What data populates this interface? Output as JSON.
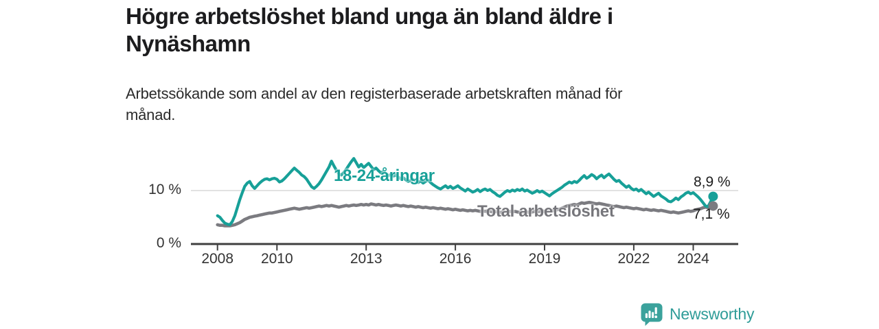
{
  "chart_data": {
    "type": "line",
    "title": "Högre arbetslöshet bland unga än bland äldre i Nynäshamn",
    "subtitle": "Arbetssökande som andel av den registerbaserade arbetskraften månad för månad.",
    "unit": "%",
    "x_start_year": 2008,
    "x_frequency": "monthly",
    "x_end": "2024-09",
    "x_tick_years": [
      2008,
      2010,
      2013,
      2016,
      2019,
      2022,
      2024
    ],
    "x_tick_labels": [
      "2008",
      "2010",
      "2013",
      "2016",
      "2019",
      "2022",
      "2024"
    ],
    "y_ticks": [
      {
        "value": 0,
        "label": "0 %"
      },
      {
        "value": 10,
        "label": "10 %"
      }
    ],
    "ylim": [
      0,
      17.5
    ],
    "grid": "single horizontal gridline at 10 %",
    "legend_position": "inline labels on lines",
    "series": [
      {
        "name": "18-24-åringar",
        "color": "#17a098",
        "end_value": 8.9,
        "end_label": "8,9 %",
        "values": [
          5.3,
          5.0,
          4.4,
          3.9,
          3.7,
          3.6,
          4.2,
          5.3,
          6.8,
          8.3,
          9.6,
          10.8,
          11.4,
          11.7,
          10.9,
          10.4,
          10.9,
          11.4,
          11.8,
          12.1,
          12.2,
          12.0,
          12.2,
          12.3,
          12.1,
          11.6,
          11.8,
          12.2,
          12.7,
          13.2,
          13.7,
          14.2,
          13.8,
          13.4,
          12.9,
          12.6,
          12.1,
          11.4,
          10.7,
          10.4,
          10.8,
          11.3,
          12.0,
          12.8,
          13.6,
          14.4,
          15.5,
          14.6,
          13.8,
          13.1,
          12.9,
          13.4,
          14.0,
          14.7,
          15.4,
          16.0,
          15.2,
          14.4,
          14.9,
          14.3,
          14.7,
          15.1,
          14.5,
          13.9,
          14.2,
          13.7,
          13.3,
          13.6,
          13.1,
          12.8,
          13.0,
          12.7,
          12.9,
          12.5,
          12.2,
          12.4,
          12.0,
          11.7,
          11.9,
          12.1,
          11.7,
          11.5,
          11.8,
          11.4,
          11.7,
          12.0,
          11.5,
          11.1,
          10.8,
          10.5,
          10.3,
          10.6,
          10.9,
          10.5,
          10.8,
          10.4,
          10.6,
          10.9,
          10.5,
          10.2,
          9.9,
          10.3,
          10.0,
          9.7,
          9.9,
          10.2,
          9.8,
          10.1,
          10.3,
          10.0,
          10.2,
          9.8,
          9.5,
          9.1,
          8.9,
          9.3,
          9.7,
          10.0,
          9.8,
          10.1,
          9.9,
          10.2,
          10.0,
          10.3,
          9.9,
          10.1,
          9.8,
          9.5,
          9.7,
          10.0,
          9.7,
          9.9,
          9.6,
          9.3,
          9.0,
          9.4,
          9.7,
          10.0,
          10.3,
          10.6,
          11.0,
          11.3,
          11.6,
          11.4,
          11.7,
          11.5,
          11.9,
          12.4,
          12.8,
          12.3,
          12.6,
          13.0,
          12.7,
          12.2,
          12.6,
          12.9,
          12.4,
          12.8,
          13.1,
          12.6,
          12.1,
          11.7,
          11.9,
          11.4,
          11.0,
          10.6,
          10.9,
          10.4,
          10.1,
          10.3,
          9.9,
          10.2,
          9.8,
          9.4,
          9.7,
          9.3,
          8.9,
          9.2,
          9.5,
          9.0,
          8.7,
          8.4,
          8.0,
          7.9,
          8.2,
          8.6,
          8.3,
          8.8,
          9.1,
          9.5,
          9.7,
          9.4,
          9.6,
          9.2,
          8.8,
          8.3,
          7.7,
          7.1,
          7.0,
          7.9,
          8.9
        ]
      },
      {
        "name": "Total arbetslöshet",
        "color": "#7b7b80",
        "end_value": 7.1,
        "end_label": "7,1 %",
        "values": [
          3.6,
          3.5,
          3.5,
          3.4,
          3.4,
          3.4,
          3.5,
          3.6,
          3.8,
          4.0,
          4.3,
          4.6,
          4.8,
          5.0,
          5.1,
          5.2,
          5.3,
          5.4,
          5.5,
          5.6,
          5.7,
          5.8,
          5.8,
          5.9,
          6.0,
          6.1,
          6.2,
          6.3,
          6.4,
          6.5,
          6.6,
          6.7,
          6.6,
          6.5,
          6.6,
          6.7,
          6.8,
          6.7,
          6.8,
          6.9,
          7.0,
          7.1,
          7.0,
          7.1,
          7.2,
          7.1,
          7.2,
          7.1,
          7.0,
          6.9,
          7.0,
          7.1,
          7.2,
          7.1,
          7.2,
          7.3,
          7.2,
          7.3,
          7.4,
          7.3,
          7.4,
          7.3,
          7.5,
          7.4,
          7.3,
          7.4,
          7.3,
          7.2,
          7.3,
          7.2,
          7.1,
          7.2,
          7.3,
          7.2,
          7.1,
          7.2,
          7.1,
          7.0,
          7.1,
          7.0,
          6.9,
          7.0,
          6.9,
          6.8,
          6.9,
          6.8,
          6.7,
          6.8,
          6.7,
          6.6,
          6.7,
          6.6,
          6.5,
          6.6,
          6.5,
          6.4,
          6.5,
          6.4,
          6.3,
          6.4,
          6.3,
          6.2,
          6.3,
          6.2,
          6.3,
          6.2,
          6.1,
          6.2,
          6.1,
          6.2,
          6.1,
          6.0,
          6.1,
          6.0,
          5.9,
          6.0,
          6.1,
          6.0,
          6.1,
          6.0,
          6.1,
          6.0,
          5.9,
          6.0,
          5.9,
          6.0,
          5.9,
          6.0,
          6.1,
          6.0,
          6.1,
          6.2,
          6.1,
          6.2,
          6.3,
          6.2,
          6.3,
          6.4,
          6.5,
          6.7,
          6.9,
          7.1,
          7.2,
          7.3,
          7.4,
          7.3,
          7.5,
          7.7,
          7.6,
          7.7,
          7.8,
          7.7,
          7.6,
          7.5,
          7.6,
          7.5,
          7.4,
          7.3,
          7.2,
          7.1,
          7.0,
          7.1,
          7.0,
          6.9,
          6.8,
          6.9,
          6.8,
          6.7,
          6.6,
          6.7,
          6.6,
          6.5,
          6.4,
          6.5,
          6.4,
          6.3,
          6.4,
          6.3,
          6.2,
          6.3,
          6.2,
          6.1,
          6.0,
          5.9,
          6.0,
          5.9,
          5.8,
          5.9,
          6.0,
          6.1,
          6.2,
          6.1,
          6.2,
          6.4,
          6.5,
          6.6,
          6.8,
          6.9,
          6.8,
          7.0,
          7.1
        ]
      }
    ]
  },
  "branding": {
    "logo_text": "Newsworthy",
    "logo_icon": "bar-chart-speech-bubble-icon",
    "color": "#2f9c98"
  },
  "colors": {
    "accent": "#17a098",
    "total_gray": "#7b7b80",
    "grid": "#d9d9d9",
    "axis": "#3f3f3f",
    "tick_text": "#333333",
    "title_text": "#1c1c1e"
  }
}
